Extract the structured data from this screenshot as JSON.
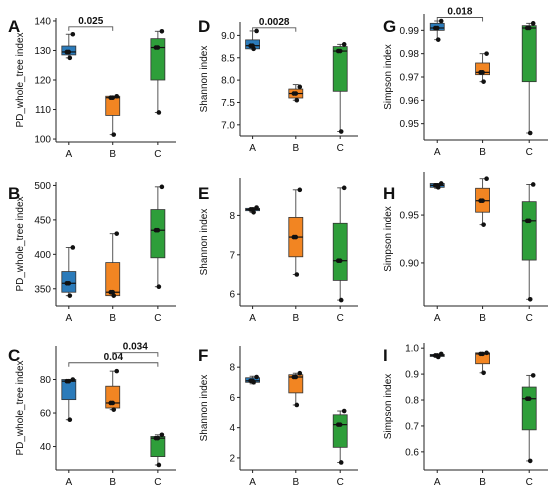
{
  "colors": {
    "A": "#2B7BBA",
    "B": "#F28522",
    "C": "#2E9E3A"
  },
  "chart_data": [
    {
      "type": "box",
      "panel": "A",
      "ylabel": "PD_whole_tree index",
      "categories": [
        "A",
        "B",
        "C"
      ],
      "ylim": [
        99,
        141
      ],
      "yticks": [
        100,
        110,
        120,
        130,
        140
      ],
      "groups": [
        {
          "q1": 128.5,
          "median": 129.5,
          "q3": 131.5,
          "min": 127.5,
          "max": 135.5,
          "mean": 129.5,
          "points": [
            135.5,
            129.5,
            127.5
          ]
        },
        {
          "q1": 108,
          "median": 114,
          "q3": 114.5,
          "min": 101.5,
          "max": 114.5,
          "mean": 114,
          "points": [
            114.5,
            114,
            101.5
          ]
        },
        {
          "q1": 120,
          "median": 131,
          "q3": 134,
          "min": 109,
          "max": 136.5,
          "mean": 131,
          "points": [
            136.5,
            131,
            109
          ]
        }
      ],
      "comparisons": [
        {
          "from": 0,
          "to": 1,
          "label": "0.025",
          "y": 138
        }
      ]
    },
    {
      "type": "box",
      "panel": "D",
      "ylabel": "Shannon index",
      "categories": [
        "A",
        "B",
        "C"
      ],
      "ylim": [
        6.75,
        9.3
      ],
      "yticks": [
        7.0,
        7.5,
        8.0,
        8.5,
        9.0
      ],
      "groups": [
        {
          "q1": 8.7,
          "median": 8.77,
          "q3": 8.9,
          "min": 8.7,
          "max": 9.1,
          "mean": 8.77,
          "points": [
            9.1,
            8.77,
            8.7
          ]
        },
        {
          "q1": 7.6,
          "median": 7.7,
          "q3": 7.8,
          "min": 7.55,
          "max": 7.9,
          "mean": 7.7,
          "points": [
            7.85,
            7.7,
            7.55
          ]
        },
        {
          "q1": 7.75,
          "median": 8.65,
          "q3": 8.75,
          "min": 6.85,
          "max": 8.8,
          "mean": 8.65,
          "points": [
            8.8,
            8.65,
            6.85
          ]
        }
      ],
      "comparisons": [
        {
          "from": 0,
          "to": 1,
          "label": "0.0028",
          "y": 9.17
        }
      ]
    },
    {
      "type": "box",
      "panel": "G",
      "ylabel": "Simpson index",
      "categories": [
        "A",
        "B",
        "C"
      ],
      "ylim": [
        0.943,
        0.997
      ],
      "yticks": [
        0.95,
        0.96,
        0.97,
        0.98,
        0.99
      ],
      "groups": [
        {
          "q1": 0.99,
          "median": 0.991,
          "q3": 0.993,
          "min": 0.986,
          "max": 0.994,
          "mean": 0.991,
          "points": [
            0.994,
            0.991,
            0.986
          ]
        },
        {
          "q1": 0.971,
          "median": 0.972,
          "q3": 0.976,
          "min": 0.968,
          "max": 0.98,
          "mean": 0.972,
          "points": [
            0.98,
            0.972,
            0.968
          ]
        },
        {
          "q1": 0.968,
          "median": 0.991,
          "q3": 0.992,
          "min": 0.946,
          "max": 0.993,
          "mean": 0.991,
          "points": [
            0.993,
            0.991,
            0.946
          ]
        }
      ],
      "comparisons": [
        {
          "from": 0,
          "to": 1,
          "label": "0.018",
          "y": 0.9955
        }
      ]
    },
    {
      "type": "box",
      "panel": "B",
      "ylabel": "PD_whole_tree index",
      "categories": [
        "A",
        "B",
        "C"
      ],
      "ylim": [
        325,
        505
      ],
      "yticks": [
        350,
        400,
        450,
        500
      ],
      "groups": [
        {
          "q1": 345,
          "median": 358,
          "q3": 375,
          "min": 340,
          "max": 410,
          "mean": 358,
          "points": [
            410,
            358,
            340
          ]
        },
        {
          "q1": 340,
          "median": 345,
          "q3": 388,
          "min": 340,
          "max": 430,
          "mean": 345,
          "points": [
            430,
            345,
            340
          ]
        },
        {
          "q1": 395,
          "median": 435,
          "q3": 465,
          "min": 353,
          "max": 498,
          "mean": 435,
          "points": [
            498,
            435,
            353
          ]
        }
      ],
      "comparisons": []
    },
    {
      "type": "box",
      "panel": "E",
      "ylabel": "Shannon index",
      "categories": [
        "A",
        "B",
        "C"
      ],
      "ylim": [
        5.7,
        8.95
      ],
      "yticks": [
        6,
        7,
        8
      ],
      "groups": [
        {
          "q1": 8.12,
          "median": 8.15,
          "q3": 8.18,
          "min": 8.08,
          "max": 8.2,
          "mean": 8.15,
          "points": [
            8.2,
            8.15,
            8.08
          ]
        },
        {
          "q1": 6.95,
          "median": 7.45,
          "q3": 7.95,
          "min": 6.5,
          "max": 8.65,
          "mean": 7.45,
          "points": [
            8.65,
            7.45,
            6.5
          ]
        },
        {
          "q1": 6.35,
          "median": 6.85,
          "q3": 7.8,
          "min": 5.85,
          "max": 8.7,
          "mean": 6.85,
          "points": [
            8.7,
            6.85,
            5.85
          ]
        }
      ],
      "comparisons": []
    },
    {
      "type": "box",
      "panel": "H",
      "ylabel": "Simpson index",
      "categories": [
        "A",
        "B",
        "C"
      ],
      "ylim": [
        0.855,
        0.995
      ],
      "yticks": [
        0.9,
        0.95
      ],
      "groups": [
        {
          "q1": 0.979,
          "median": 0.981,
          "q3": 0.983,
          "min": 0.978,
          "max": 0.983,
          "mean": 0.981,
          "points": [
            0.983,
            0.981,
            0.979
          ]
        },
        {
          "q1": 0.953,
          "median": 0.965,
          "q3": 0.978,
          "min": 0.94,
          "max": 0.988,
          "mean": 0.965,
          "points": [
            0.988,
            0.965,
            0.94
          ]
        },
        {
          "q1": 0.903,
          "median": 0.944,
          "q3": 0.964,
          "min": 0.862,
          "max": 0.982,
          "mean": 0.944,
          "points": [
            0.982,
            0.944,
            0.862
          ]
        }
      ],
      "comparisons": []
    },
    {
      "type": "box",
      "panel": "C",
      "ylabel": "PD_whole_tree index",
      "categories": [
        "A",
        "B",
        "C"
      ],
      "ylim": [
        26,
        100
      ],
      "yticks": [
        40,
        60,
        80
      ],
      "groups": [
        {
          "q1": 68,
          "median": 79,
          "q3": 80,
          "min": 56,
          "max": 80,
          "mean": 79,
          "points": [
            80,
            79,
            56
          ]
        },
        {
          "q1": 63,
          "median": 66,
          "q3": 76,
          "min": 62,
          "max": 85,
          "mean": 66,
          "points": [
            85,
            66,
            62
          ]
        },
        {
          "q1": 34,
          "median": 45,
          "q3": 46,
          "min": 29,
          "max": 47,
          "mean": 45,
          "points": [
            47,
            45,
            29
          ]
        }
      ],
      "comparisons": [
        {
          "from": 0,
          "to": 2,
          "label": "0.04",
          "y": 90
        },
        {
          "from": 1,
          "to": 2,
          "label": "0.034",
          "y": 96
        }
      ]
    },
    {
      "type": "box",
      "panel": "F",
      "ylabel": "Shannon index",
      "categories": [
        "A",
        "B",
        "C"
      ],
      "ylim": [
        1.2,
        9.4
      ],
      "yticks": [
        2,
        4,
        6,
        8
      ],
      "groups": [
        {
          "q1": 7.0,
          "median": 7.1,
          "q3": 7.3,
          "min": 6.9,
          "max": 7.4,
          "mean": 7.1,
          "points": [
            7.35,
            7.1,
            7.0
          ]
        },
        {
          "q1": 6.3,
          "median": 7.35,
          "q3": 7.5,
          "min": 5.5,
          "max": 7.6,
          "mean": 7.35,
          "points": [
            7.6,
            7.35,
            5.5
          ]
        },
        {
          "q1": 2.7,
          "median": 4.2,
          "q3": 4.85,
          "min": 1.7,
          "max": 5.1,
          "mean": 4.2,
          "points": [
            5.1,
            4.2,
            1.7
          ]
        }
      ],
      "comparisons": []
    },
    {
      "type": "box",
      "panel": "I",
      "ylabel": "Simpson index",
      "categories": [
        "A",
        "B",
        "C"
      ],
      "ylim": [
        0.53,
        1.02
      ],
      "yticks": [
        0.6,
        0.7,
        0.8,
        0.9,
        1.0
      ],
      "groups": [
        {
          "q1": 0.968,
          "median": 0.972,
          "q3": 0.976,
          "min": 0.965,
          "max": 0.978,
          "mean": 0.972,
          "points": [
            0.978,
            0.972,
            0.966
          ]
        },
        {
          "q1": 0.94,
          "median": 0.978,
          "q3": 0.982,
          "min": 0.905,
          "max": 0.982,
          "mean": 0.978,
          "points": [
            0.982,
            0.978,
            0.905
          ]
        },
        {
          "q1": 0.685,
          "median": 0.805,
          "q3": 0.85,
          "min": 0.565,
          "max": 0.895,
          "mean": 0.805,
          "points": [
            0.895,
            0.805,
            0.565
          ]
        }
      ],
      "comparisons": []
    }
  ]
}
